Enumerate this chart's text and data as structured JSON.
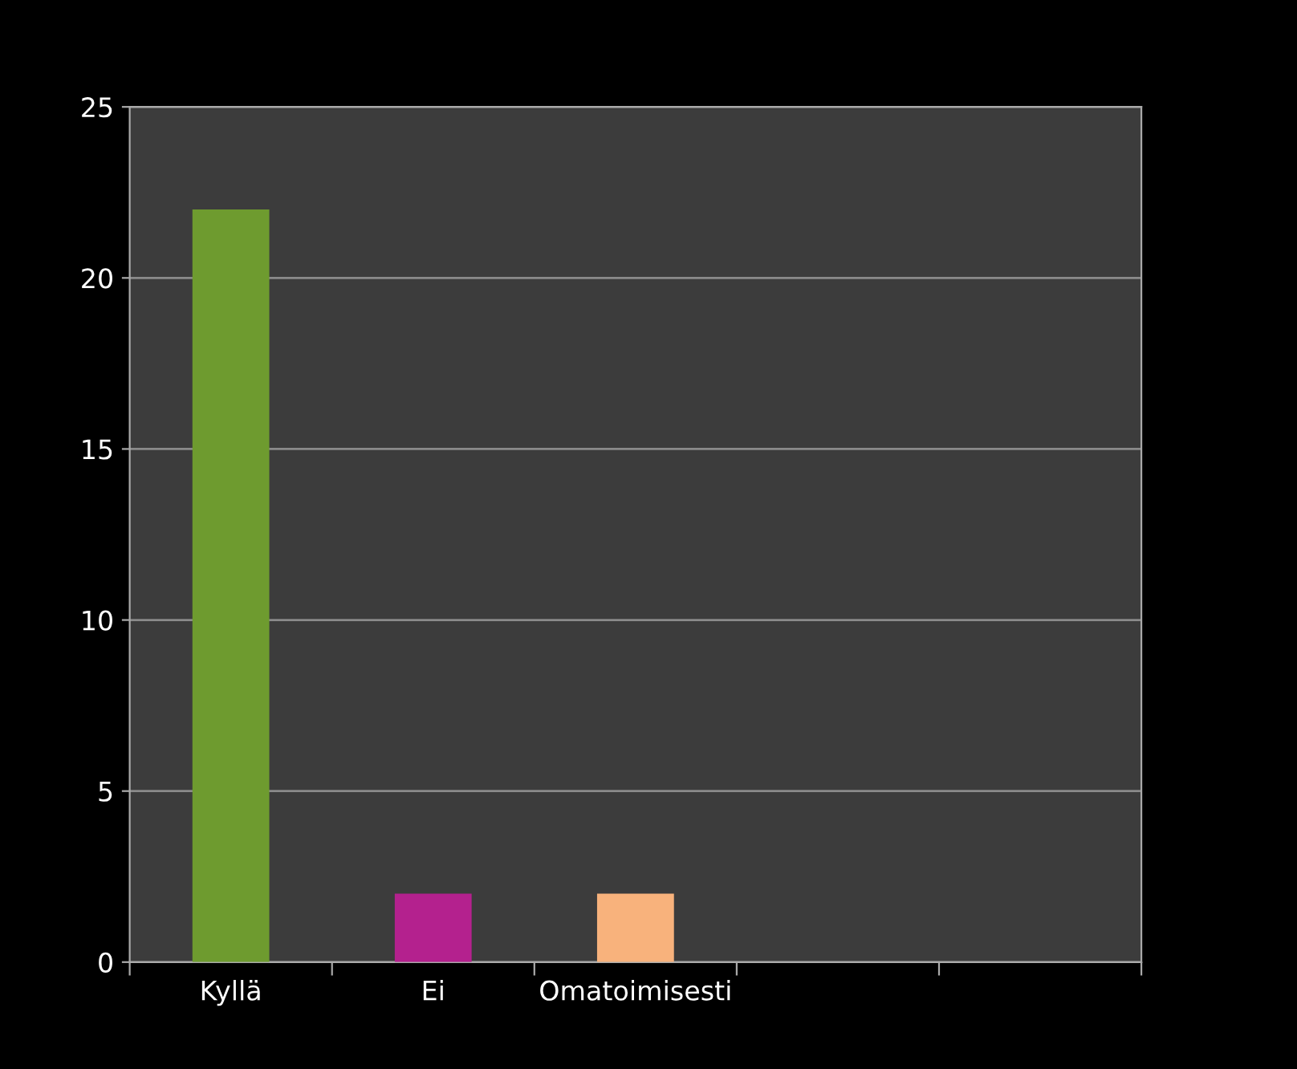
{
  "chart_data": {
    "type": "bar",
    "categories": [
      "Kyllä",
      "Ei",
      "Omatoimisesti",
      null,
      null
    ],
    "values": [
      22,
      2,
      2,
      null,
      null
    ],
    "colors": [
      "#6e9b2f",
      "#b4218e",
      "#f8b27c",
      null,
      null
    ],
    "ylim": [
      0,
      25
    ],
    "yticks": [
      0,
      5,
      10,
      15,
      20,
      25
    ],
    "grid": "y"
  }
}
